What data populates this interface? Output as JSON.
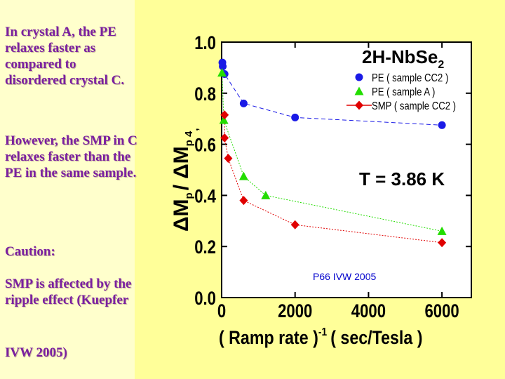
{
  "notes": {
    "para1": "In crystal A, the PE relaxes faster as compared to disordered crystal C.",
    "para2": "However, the SMP in C relaxes faster than the PE in the same sample.",
    "caution": "Caution:",
    "para3": "SMP is affected by the ripple effect (Kuepfer",
    "para4": "IVW 2005)"
  },
  "colors": {
    "left_bg": "#ffffcc",
    "slide_bg": "#ffff99",
    "text": "#7a1fa0",
    "series_blue": "#1a1ae6",
    "series_green": "#22dd00",
    "series_red": "#e00000"
  },
  "chart_data": {
    "type": "scatter",
    "title": "2H-NbSe",
    "title_subscript": "2",
    "ylabel": "ΔM",
    "ylabel_subscript": "p",
    "ylabel_slash": "/",
    "ylabel_numerator_sub": "p 4",
    "ylabel_comma": ",",
    "xlabel_left": "( Ramp rate )",
    "xlabel_exp": "-1",
    "xlabel_right": "( sec/Tesla )",
    "annotation": "T = 3.86 K",
    "citation": "P66 IVW 2005",
    "xlim": [
      0,
      6800
    ],
    "ylim": [
      0,
      1.0
    ],
    "x_ticks": [
      "0",
      "2000",
      "4000",
      "6000"
    ],
    "x_tick_values": [
      0,
      2000,
      4000,
      6000
    ],
    "y_ticks": [
      "0.0",
      "0.2",
      "0.4",
      "0.6",
      "0.8",
      "1.0"
    ],
    "y_tick_values": [
      0,
      0.2,
      0.4,
      0.6,
      0.8,
      1.0
    ],
    "legend_position": "top-right",
    "series": [
      {
        "name": "PE ( sample CC2 )",
        "marker": "circle",
        "color": "#1a1ae6",
        "line": "dashed",
        "points": [
          [
            20,
            0.92
          ],
          [
            30,
            0.905
          ],
          [
            80,
            0.875
          ],
          [
            600,
            0.76
          ],
          [
            2000,
            0.705
          ],
          [
            6000,
            0.675
          ]
        ]
      },
      {
        "name": "PE ( sample A )",
        "marker": "triangle",
        "color": "#22dd00",
        "line": "dotted",
        "points": [
          [
            10,
            0.88
          ],
          [
            60,
            0.695
          ],
          [
            600,
            0.475
          ],
          [
            1200,
            0.4
          ],
          [
            6000,
            0.26
          ]
        ]
      },
      {
        "name": "SMP ( sample CC2 )",
        "marker": "diamond",
        "color": "#e00000",
        "line": "dotted",
        "points": [
          [
            80,
            0.715
          ],
          [
            80,
            0.625
          ],
          [
            180,
            0.545
          ],
          [
            600,
            0.38
          ],
          [
            2000,
            0.285
          ],
          [
            6000,
            0.215
          ]
        ]
      }
    ]
  }
}
